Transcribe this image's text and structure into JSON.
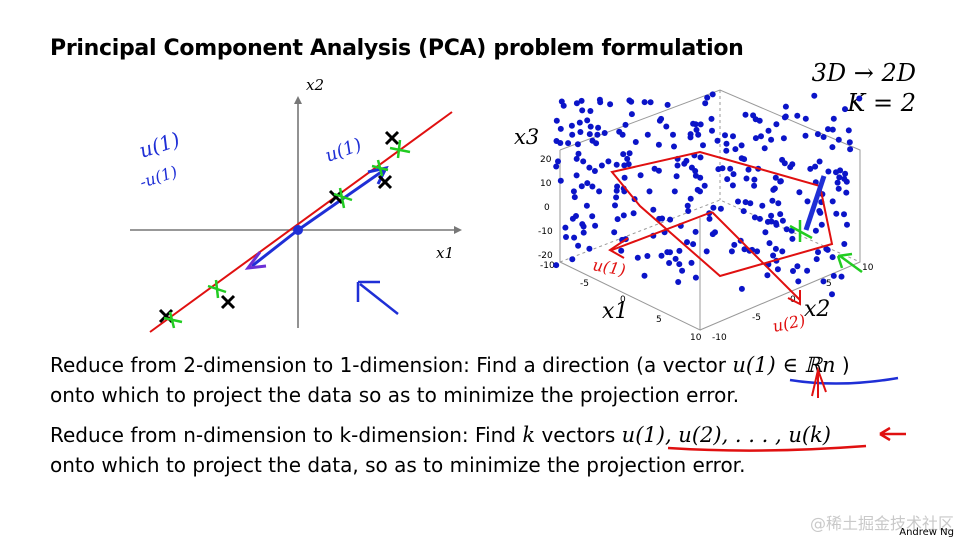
{
  "slide": {
    "title": "Principal Component Analysis (PCA) problem formulation",
    "corner_line1": "3D → 2D",
    "corner_line2": "K = 2",
    "para1_line1": "Reduce from 2-dimension to 1-dimension: Find a direction (a vector",
    "para1_math": "u(1) ∈ ℝn",
    "para1_close": ")",
    "para1_line2": "onto which to project the data so as to minimize the projection error.",
    "para2_pre": "Reduce from n-dimension to k-dimension: Find",
    "para2_k": "k",
    "para2_mid": "vectors",
    "para2_math": "u(1), u(2), . . . , u(k)",
    "para2_line2": "onto which to project the data, so as to minimize the projection error.",
    "attribution": "Andrew Ng",
    "watermark": "@稀土掘金技术社区"
  },
  "left_plot": {
    "x_axis_label": "x1",
    "y_axis_label": "x2",
    "annotation_top": "u(1)",
    "annotation_left1": "u(1)",
    "annotation_left2": "-u(1)"
  },
  "right_plot": {
    "z_axis_label": "x3",
    "x_axis_label": "x1",
    "y_axis_label": "x2",
    "z_ticks": [
      "20",
      "10",
      "0",
      "-10",
      "-20"
    ],
    "x_ticks": [
      "-10",
      "-5",
      "0",
      "5",
      "10"
    ],
    "y_ticks": [
      "10",
      "5",
      "0",
      "-5",
      "-10"
    ],
    "handwritten_u1": "u(1)",
    "handwritten_u2": "u(2)"
  },
  "colors": {
    "ink_blue": "#1f2fd6",
    "ink_red": "#e01010",
    "ink_green": "#22cc22",
    "marker_black": "#000000",
    "dot_blue": "#0b14c8",
    "axis_gray": "#777777"
  }
}
